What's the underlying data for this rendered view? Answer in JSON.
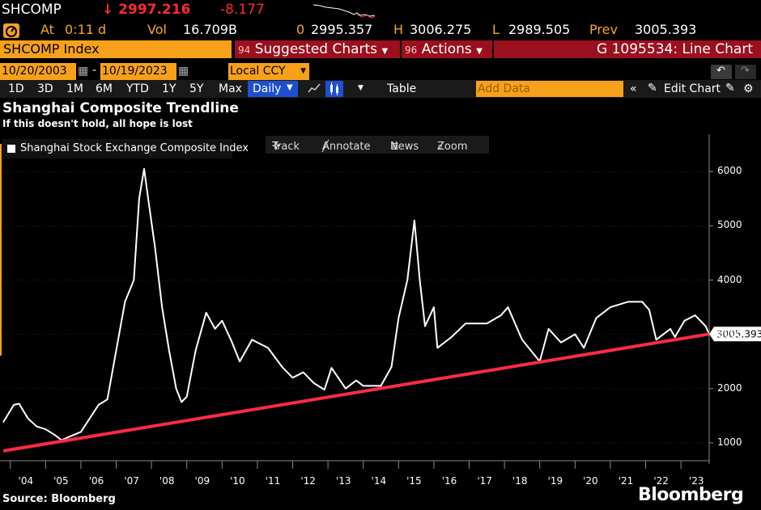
{
  "header": {
    "ticker": "SHCOMP",
    "last": "↓ 2997.216",
    "change": "-8.177",
    "at_label": "At",
    "at_value": "0:11 d",
    "vol_label": "Vol",
    "vol_value": "16.709B",
    "open_label": "0",
    "open_value": "2995.357",
    "high_label": "H",
    "high_value": "3006.275",
    "low_label": "L",
    "low_value": "2989.505",
    "prev_label": "Prev",
    "prev_value": "3005.393"
  },
  "command_bar": {
    "security": "SHCOMP Index",
    "suggested_num": "94",
    "suggested_label": "Suggested Charts",
    "actions_num": "96",
    "actions_label": "Actions",
    "chart_id": "G 1095534: Line Chart"
  },
  "date_bar": {
    "start_date": "10/20/2003",
    "end_date": "10/19/2023",
    "dash": "-",
    "currency": "Local CCY"
  },
  "range_bar": {
    "ranges": [
      "1D",
      "3D",
      "1M",
      "6M",
      "YTD",
      "1Y",
      "5Y",
      "Max"
    ],
    "frequency": "Daily",
    "table_label": "Table",
    "add_data_placeholder": "Add Data",
    "edit_chart": "Edit Chart"
  },
  "chart_toolbar": {
    "track": "Track",
    "annotate": "Annotate",
    "news": "News",
    "zoom": "Zoom"
  },
  "footer": {
    "source": "Source: Bloomberg",
    "brand": "Bloomberg"
  },
  "colors": {
    "orange": "#f7a11a",
    "red_bar": "#9b0f1f",
    "trendline": "#ff2a45",
    "series": "#ffffff",
    "price_down": "#ff2b2b"
  },
  "chart_data": {
    "type": "line",
    "title": "Shanghai Composite Trendline",
    "subtitle": "If this doesn't hold, all hope is lost",
    "legend": [
      "Shanghai Stock Exchange Composite Index"
    ],
    "ylim": [
      700,
      6600
    ],
    "yticks": [
      1000,
      2000,
      3000,
      4000,
      5000,
      6000
    ],
    "xlim": [
      2003.8,
      2023.8
    ],
    "xticks": [
      "'04",
      "'05",
      "'06",
      "'07",
      "'08",
      "'09",
      "'10",
      "'11",
      "'12",
      "'13",
      "'14",
      "'15",
      "'16",
      "'17",
      "'18",
      "'19",
      "'20",
      "'21",
      "'22",
      "'23"
    ],
    "last_value_label": "3005.393",
    "series": [
      {
        "name": "Shanghai Stock Exchange Composite Index",
        "x": [
          2003.8,
          2004.1,
          2004.25,
          2004.5,
          2004.75,
          2005.0,
          2005.25,
          2005.45,
          2005.7,
          2006.0,
          2006.25,
          2006.5,
          2006.75,
          2007.0,
          2007.25,
          2007.5,
          2007.65,
          2007.79,
          2007.95,
          2008.1,
          2008.3,
          2008.5,
          2008.7,
          2008.85,
          2009.0,
          2009.25,
          2009.55,
          2009.8,
          2010.0,
          2010.25,
          2010.5,
          2010.85,
          2011.0,
          2011.3,
          2011.7,
          2012.0,
          2012.3,
          2012.6,
          2012.9,
          2013.1,
          2013.5,
          2013.8,
          2014.0,
          2014.5,
          2014.8,
          2015.0,
          2015.25,
          2015.45,
          2015.6,
          2015.75,
          2016.0,
          2016.1,
          2016.5,
          2016.9,
          2017.5,
          2017.9,
          2018.1,
          2018.5,
          2019.0,
          2019.25,
          2019.6,
          2020.0,
          2020.25,
          2020.6,
          2021.0,
          2021.5,
          2021.9,
          2022.1,
          2022.3,
          2022.7,
          2022.83,
          2023.1,
          2023.4,
          2023.7,
          2023.8
        ],
        "y": [
          1380,
          1700,
          1720,
          1450,
          1300,
          1250,
          1150,
          1050,
          1120,
          1200,
          1450,
          1700,
          1800,
          2700,
          3600,
          4000,
          5500,
          6050,
          5300,
          4600,
          3500,
          2700,
          2000,
          1750,
          1850,
          2700,
          3400,
          3100,
          3250,
          2900,
          2500,
          2900,
          2850,
          2750,
          2400,
          2200,
          2300,
          2100,
          1980,
          2380,
          2000,
          2150,
          2050,
          2050,
          2400,
          3300,
          4000,
          5100,
          4000,
          3150,
          3500,
          2750,
          2950,
          3200,
          3200,
          3350,
          3500,
          2900,
          2500,
          3100,
          2850,
          3000,
          2750,
          3300,
          3500,
          3600,
          3600,
          3450,
          2900,
          3100,
          2950,
          3250,
          3350,
          3150,
          3005
        ]
      },
      {
        "name": "Trendline",
        "x": [
          2003.8,
          2023.8
        ],
        "y": [
          850,
          3005
        ]
      }
    ]
  }
}
